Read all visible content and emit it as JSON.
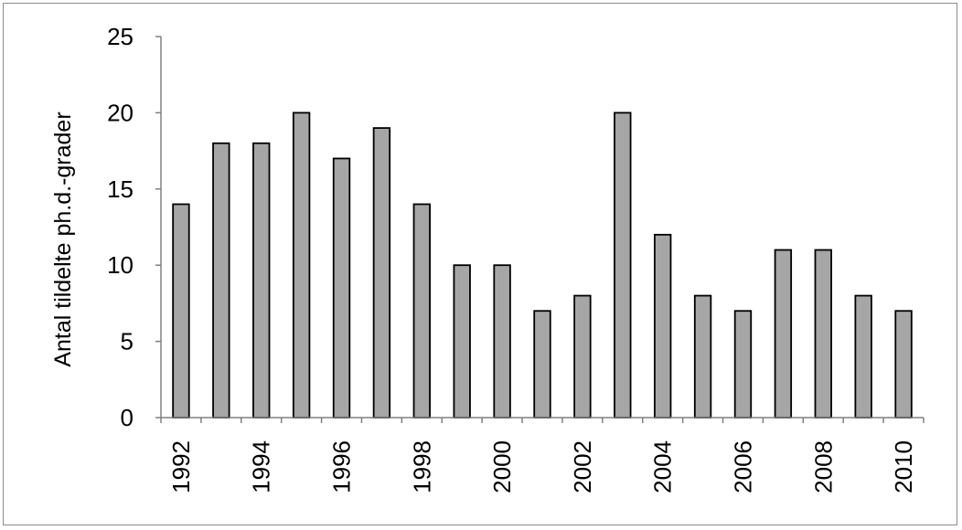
{
  "chart_data": {
    "type": "bar",
    "title": "",
    "xlabel": "",
    "ylabel": "Antal tildelte ph.d.-grader",
    "ylim": [
      0,
      25
    ],
    "yticks": [
      "0",
      "5",
      "10",
      "15",
      "20",
      "25"
    ],
    "grid": false,
    "legend": "none",
    "bar_color": "#a6a6a6",
    "bar_edge_color": "#000000",
    "categories": [
      "1992",
      "1993",
      "1994",
      "1995",
      "1996",
      "1997",
      "1998",
      "1999",
      "2000",
      "2001",
      "2002",
      "2003",
      "2004",
      "2005",
      "2006",
      "2007",
      "2008",
      "2009",
      "2010"
    ],
    "xtick_labels": [
      "1992",
      "",
      "1994",
      "",
      "1996",
      "",
      "1998",
      "",
      "2000",
      "",
      "2002",
      "",
      "2004",
      "",
      "2006",
      "",
      "2008",
      "",
      "2010"
    ],
    "values": [
      14,
      18,
      18,
      20,
      17,
      19,
      14,
      10,
      10,
      7,
      8,
      20,
      12,
      8,
      7,
      11,
      11,
      8,
      7
    ]
  }
}
